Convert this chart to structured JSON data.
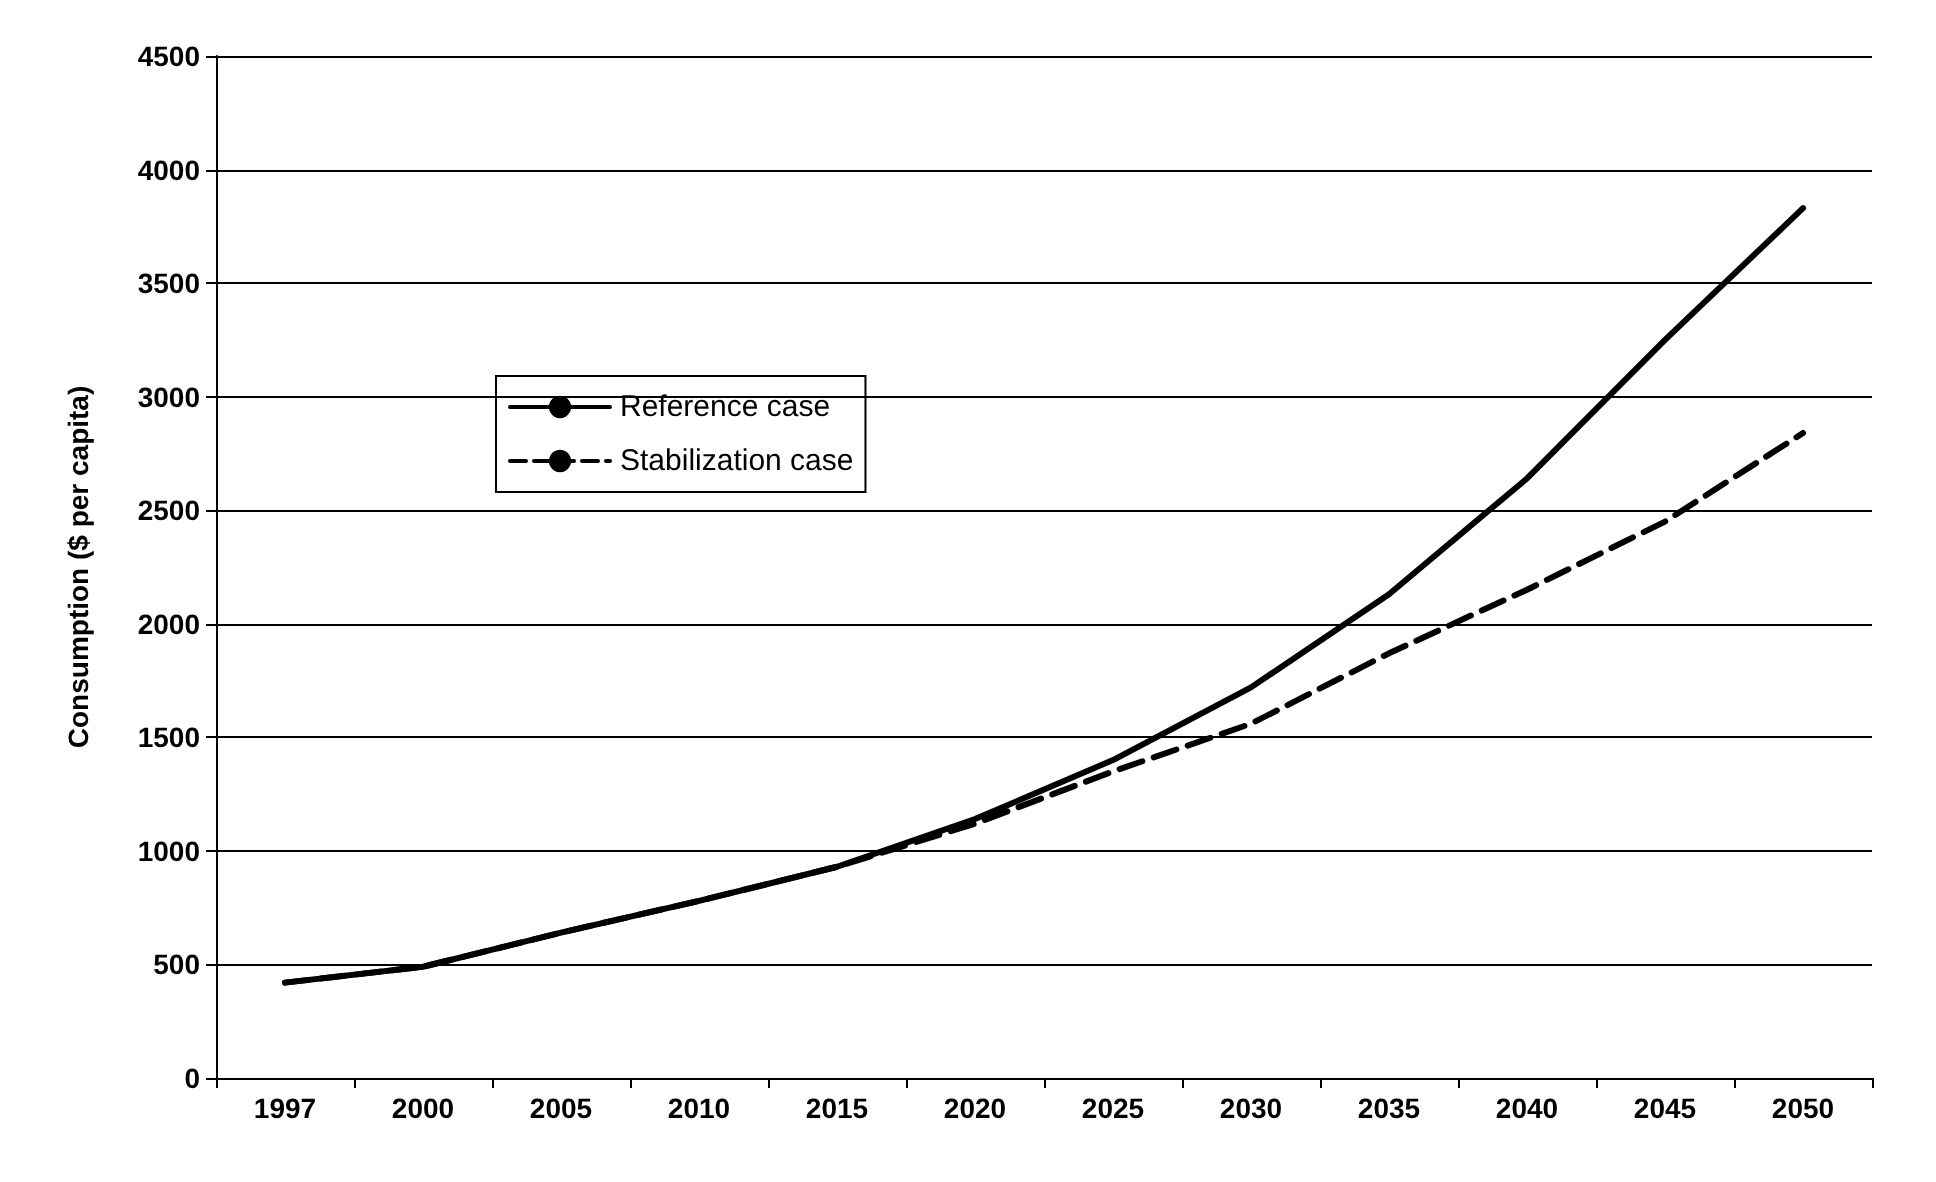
{
  "chart_data": {
    "type": "line",
    "ylabel": "Consumption ($ per capita)",
    "categories": [
      "1997",
      "2000",
      "2005",
      "2010",
      "2015",
      "2020",
      "2025",
      "2030",
      "2035",
      "2040",
      "2045",
      "2050"
    ],
    "series": [
      {
        "name": "Reference case",
        "color": "#000000",
        "line_style": "solid",
        "values": [
          420,
          490,
          640,
          780,
          930,
          1140,
          1400,
          1720,
          2130,
          2640,
          3250,
          3830
        ]
      },
      {
        "name": "Stabilization case",
        "color": "#000000",
        "line_style": "dashed",
        "values": [
          420,
          490,
          640,
          780,
          930,
          1120,
          1350,
          1560,
          1870,
          2150,
          2450,
          2840
        ]
      }
    ],
    "ylim": [
      0,
      4500
    ],
    "yticks": [
      0,
      500,
      1000,
      1500,
      2000,
      2500,
      3000,
      3500,
      4000,
      4500
    ],
    "grid": "y",
    "legend": "top left",
    "marker": "none"
  }
}
